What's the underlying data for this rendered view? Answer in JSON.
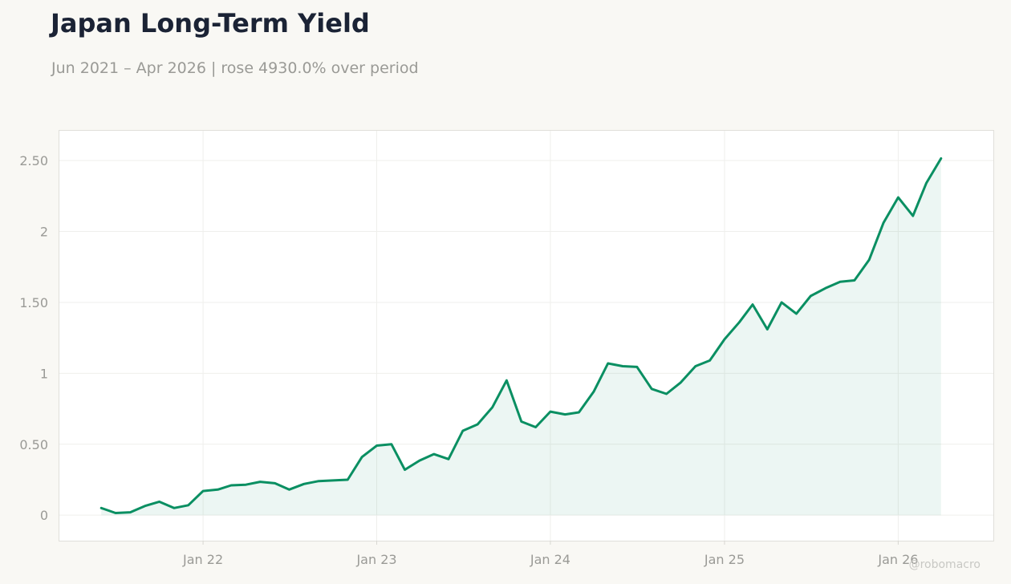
{
  "title": "Japan Long-Term Yield",
  "subtitle": "Jun 2021 – Apr 2026 | rose 4930.0% over period",
  "watermark": "@robomacro",
  "colors": {
    "line": "#0a8f62",
    "area": "#0a8f62",
    "background": "#f9f8f4",
    "plot_background": "#ffffff",
    "title": "#1b2335",
    "muted_text": "#9a9a96"
  },
  "chart_data": {
    "type": "area",
    "title": "Japan Long-Term Yield",
    "subtitle": "Jun 2021 – Apr 2026 | rose 4930.0% over period",
    "xlabel": "",
    "ylabel": "",
    "grid": true,
    "legend": "none",
    "x_ticks": [
      "Jan 22",
      "Jan 23",
      "Jan 24",
      "Jan 25",
      "Jan 26"
    ],
    "x_tick_dates": [
      "2022-01",
      "2023-01",
      "2024-01",
      "2025-01",
      "2026-01"
    ],
    "y_ticks": [
      0,
      0.5,
      1,
      1.5,
      2,
      2.5
    ],
    "y_tick_labels": [
      "0",
      "0.50",
      "1",
      "1.50",
      "2",
      "2.50"
    ],
    "xlim": [
      "2021-03-05",
      "2026-07-20"
    ],
    "ylim": [
      -0.18,
      2.71
    ],
    "series": [
      {
        "x": [
          "2021-06",
          "2021-07",
          "2021-08",
          "2021-09",
          "2021-10",
          "2021-11",
          "2021-12",
          "2022-01",
          "2022-02",
          "2022-03",
          "2022-04",
          "2022-05",
          "2022-06",
          "2022-07",
          "2022-08",
          "2022-09",
          "2022-10",
          "2022-11",
          "2022-12",
          "2023-01",
          "2023-02",
          "2023-03",
          "2023-04",
          "2023-05",
          "2023-06",
          "2023-07",
          "2023-08",
          "2023-09",
          "2023-10",
          "2023-11",
          "2023-12",
          "2024-01",
          "2024-02",
          "2024-03",
          "2024-04",
          "2024-05",
          "2024-06",
          "2024-07",
          "2024-08",
          "2024-09",
          "2024-10",
          "2024-11",
          "2024-12",
          "2025-01",
          "2025-02",
          "2025-03",
          "2025-04",
          "2025-05",
          "2025-06",
          "2025-07",
          "2025-08",
          "2025-09",
          "2025-10",
          "2025-11",
          "2025-12",
          "2026-01",
          "2026-02",
          "2026-03",
          "2026-04"
        ],
        "values": [
          0.05,
          0.015,
          0.02,
          0.065,
          0.095,
          0.05,
          0.07,
          0.17,
          0.18,
          0.21,
          0.215,
          0.235,
          0.225,
          0.18,
          0.22,
          0.24,
          0.245,
          0.25,
          0.41,
          0.49,
          0.5,
          0.32,
          0.385,
          0.43,
          0.395,
          0.595,
          0.64,
          0.76,
          0.95,
          0.66,
          0.62,
          0.73,
          0.71,
          0.725,
          0.87,
          1.07,
          1.05,
          1.045,
          0.89,
          0.855,
          0.935,
          1.05,
          1.09,
          1.24,
          1.36,
          1.485,
          1.31,
          1.5,
          1.42,
          1.545,
          1.6,
          1.645,
          1.655,
          1.8,
          2.06,
          2.24,
          2.11,
          2.34,
          2.515
        ]
      }
    ]
  }
}
